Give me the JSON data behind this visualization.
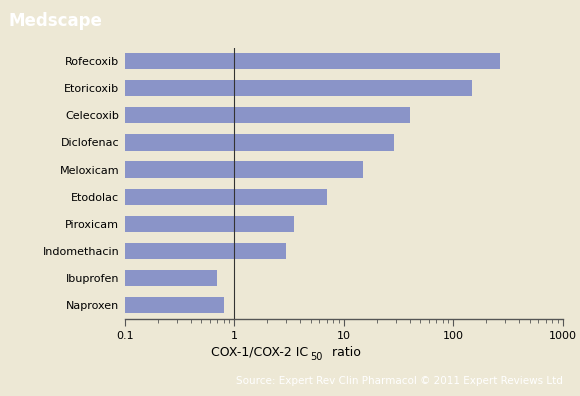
{
  "drugs": [
    "Rofecoxib",
    "Etoricoxib",
    "Celecoxib",
    "Diclofenac",
    "Meloxicam",
    "Etodolac",
    "Piroxicam",
    "Indomethacin",
    "Ibuprofen",
    "Naproxen"
  ],
  "values": [
    270.0,
    150.0,
    40.0,
    29.0,
    15.0,
    7.0,
    3.5,
    3.0,
    0.7,
    0.8
  ],
  "bar_color": "#8A94C8",
  "xlim_lo": 0.1,
  "xlim_hi": 1000,
  "title": "Medscape",
  "header_bg": "#2175A8",
  "header_text_color": "#FFFFFF",
  "footer_bg": "#2175A8",
  "footer_text": "Source: Expert Rev Clin Pharmacol © 2011 Expert Reviews Ltd",
  "footer_text_color": "#FFFFFF",
  "plot_bg": "#EDE8D5",
  "fig_bg": "#EDE8D5",
  "vline_x": 1.0,
  "xticks": [
    0.1,
    1,
    10,
    100,
    1000
  ],
  "xtick_labels": [
    "0.1",
    "1",
    "10",
    "100",
    "1000"
  ],
  "xlabel_main": "COX-1/COX-2 IC",
  "xlabel_sub": "50",
  "xlabel_suffix": " ratio"
}
